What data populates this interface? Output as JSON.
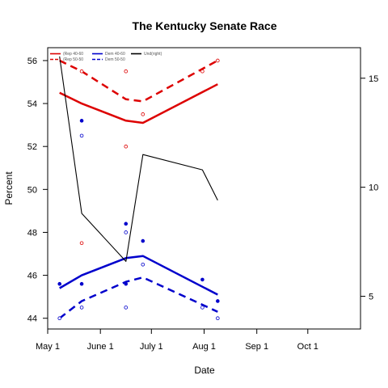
{
  "chart_data": {
    "type": "line",
    "title": "The Kentucky Senate Race",
    "xlabel": "Date",
    "ylabel": "Percent",
    "x_ticks": [
      "May 1",
      "June 1",
      "July 1",
      "Aug 1",
      "Sep 1",
      "Oct 1"
    ],
    "x_tick_days": [
      0,
      31,
      61,
      92,
      123,
      153
    ],
    "xlim_days": [
      0,
      184
    ],
    "ylim": [
      43.5,
      56.6
    ],
    "y_ticks": [
      44,
      46,
      48,
      50,
      52,
      54,
      56
    ],
    "y2lim": [
      3.5,
      16.4
    ],
    "y2_ticks": [
      5,
      10,
      15
    ],
    "legend": {
      "placement": "top-left",
      "entries": [
        {
          "label": "(Rep 40-60",
          "color": "#dd0000",
          "style": "solid"
        },
        {
          "label": "(Rep 50-50",
          "color": "#dd0000",
          "style": "dashed"
        },
        {
          "label": "Dem 40-60",
          "color": "#0000cc",
          "style": "solid"
        },
        {
          "label": "Dem 50-50",
          "color": "#0000cc",
          "style": "dashed"
        },
        {
          "label": "Und(right)",
          "color": "#000000",
          "style": "solid"
        }
      ]
    },
    "series": [
      {
        "color": "#dd0000",
        "style": "solid",
        "axis": "left",
        "points": [
          [
            7,
            54.5
          ],
          [
            20,
            54.0
          ],
          [
            46,
            53.2
          ],
          [
            56,
            53.1
          ],
          [
            100,
            54.9
          ]
        ]
      },
      {
        "color": "#dd0000",
        "style": "dashed",
        "axis": "left",
        "points": [
          [
            7,
            56.0
          ],
          [
            20,
            55.5
          ],
          [
            46,
            54.2
          ],
          [
            56,
            54.1
          ],
          [
            100,
            56.0
          ]
        ]
      },
      {
        "color": "#0000cc",
        "style": "solid",
        "axis": "left",
        "points": [
          [
            7,
            45.4
          ],
          [
            20,
            46.0
          ],
          [
            46,
            46.8
          ],
          [
            56,
            46.9
          ],
          [
            100,
            45.1
          ]
        ]
      },
      {
        "color": "#0000cc",
        "style": "dashed",
        "axis": "left",
        "points": [
          [
            7,
            44.0
          ],
          [
            20,
            44.8
          ],
          [
            46,
            45.7
          ],
          [
            56,
            45.9
          ],
          [
            100,
            44.3
          ]
        ]
      },
      {
        "color": "#000000",
        "style": "solid",
        "axis": "right",
        "points": [
          [
            7,
            16.0
          ],
          [
            20,
            8.8
          ],
          [
            46,
            6.6
          ],
          [
            56,
            11.5
          ],
          [
            91,
            10.8
          ],
          [
            100,
            9.4
          ]
        ]
      }
    ],
    "scatter": [
      {
        "color": "#dd0000",
        "filled": false,
        "points": [
          [
            20,
            55.5
          ],
          [
            20,
            47.5
          ],
          [
            46,
            52.0
          ],
          [
            46,
            55.5
          ],
          [
            56,
            53.5
          ],
          [
            91,
            55.5
          ],
          [
            100,
            56.0
          ]
        ]
      },
      {
        "color": "#0000cc",
        "filled": true,
        "points": [
          [
            7,
            45.6
          ],
          [
            20,
            53.2
          ],
          [
            20,
            45.6
          ],
          [
            46,
            48.4
          ],
          [
            46,
            45.6
          ],
          [
            56,
            47.6
          ],
          [
            91,
            45.8
          ],
          [
            100,
            44.8
          ]
        ]
      },
      {
        "color": "#0000cc",
        "filled": false,
        "points": [
          [
            7,
            44.0
          ],
          [
            20,
            52.5
          ],
          [
            20,
            44.5
          ],
          [
            46,
            48.0
          ],
          [
            46,
            44.5
          ],
          [
            56,
            46.5
          ],
          [
            91,
            44.5
          ],
          [
            100,
            44.0
          ]
        ]
      }
    ]
  }
}
